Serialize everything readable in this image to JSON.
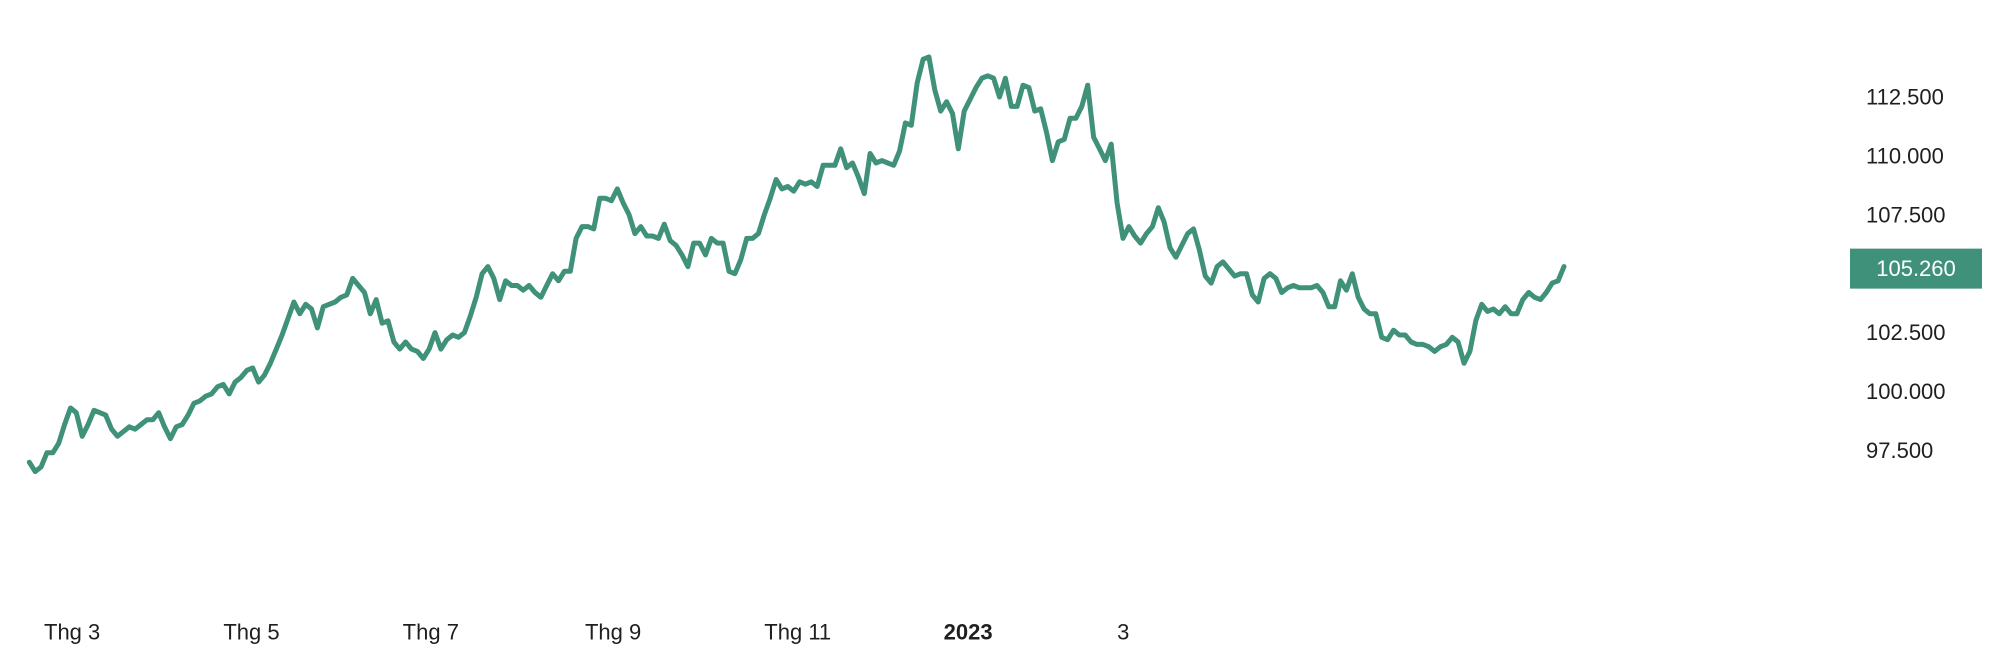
{
  "chart_data": {
    "type": "line",
    "title": "",
    "xlabel": "",
    "ylabel": "",
    "ylim": [
      95.5,
      114.7
    ],
    "grid": false,
    "color": "#3f917a",
    "label_bg": "#3f917a",
    "y_ticks": [
      {
        "value": 112.5,
        "label": "112.500"
      },
      {
        "value": 110.0,
        "label": "110.000"
      },
      {
        "value": 107.5,
        "label": "107.500"
      },
      {
        "value": 102.5,
        "label": "102.500"
      },
      {
        "value": 100.0,
        "label": "100.000"
      },
      {
        "value": 97.5,
        "label": "97.500"
      }
    ],
    "x_ticks": [
      {
        "x": 0,
        "label": "Thg 3",
        "bold": false
      },
      {
        "x": 61,
        "label": "Thg 5",
        "bold": false
      },
      {
        "x": 122,
        "label": "Thg 7",
        "bold": false
      },
      {
        "x": 184,
        "label": "Thg 9",
        "bold": false
      },
      {
        "x": 245,
        "label": "Thg 11",
        "bold": false
      },
      {
        "x": 306,
        "label": "2023",
        "bold": true
      },
      {
        "x": 365,
        "label": "3",
        "bold": false
      }
    ],
    "last_value_label": "105.260",
    "series": [
      {
        "points": [
          [
            -5,
            97.0
          ],
          [
            -3,
            96.6
          ],
          [
            -1,
            96.8
          ],
          [
            1,
            97.4
          ],
          [
            3,
            97.4
          ],
          [
            5,
            97.8
          ],
          [
            7,
            98.6
          ],
          [
            9,
            99.3
          ],
          [
            11,
            99.1
          ],
          [
            13,
            98.1
          ],
          [
            15,
            98.6
          ],
          [
            17,
            99.2
          ],
          [
            19,
            99.1
          ],
          [
            21,
            99.0
          ],
          [
            23,
            98.4
          ],
          [
            25,
            98.1
          ],
          [
            27,
            98.3
          ],
          [
            29,
            98.5
          ],
          [
            31,
            98.4
          ],
          [
            33,
            98.6
          ],
          [
            35,
            98.8
          ],
          [
            37,
            98.8
          ],
          [
            39,
            99.1
          ],
          [
            41,
            98.5
          ],
          [
            43,
            98.0
          ],
          [
            45,
            98.5
          ],
          [
            47,
            98.6
          ],
          [
            49,
            99.0
          ],
          [
            51,
            99.5
          ],
          [
            53,
            99.6
          ],
          [
            55,
            99.8
          ],
          [
            57,
            99.9
          ],
          [
            59,
            100.2
          ],
          [
            61,
            100.3
          ],
          [
            63,
            99.9
          ],
          [
            65,
            100.4
          ],
          [
            67,
            100.6
          ],
          [
            69,
            100.9
          ],
          [
            71,
            101.0
          ],
          [
            73,
            100.4
          ],
          [
            75,
            100.7
          ],
          [
            77,
            101.2
          ],
          [
            79,
            101.8
          ],
          [
            81,
            102.4
          ],
          [
            83,
            103.1
          ],
          [
            85,
            103.8
          ],
          [
            87,
            103.3
          ],
          [
            89,
            103.7
          ],
          [
            91,
            103.5
          ],
          [
            93,
            102.7
          ],
          [
            95,
            103.6
          ],
          [
            97,
            103.7
          ],
          [
            99,
            103.8
          ],
          [
            101,
            104.0
          ],
          [
            103,
            104.1
          ],
          [
            105,
            104.8
          ],
          [
            107,
            104.5
          ],
          [
            109,
            104.2
          ],
          [
            111,
            103.3
          ],
          [
            113,
            103.9
          ],
          [
            115,
            102.9
          ],
          [
            117,
            103.0
          ],
          [
            119,
            102.1
          ],
          [
            121,
            101.8
          ],
          [
            123,
            102.1
          ],
          [
            125,
            101.8
          ],
          [
            127,
            101.7
          ],
          [
            129,
            101.4
          ],
          [
            131,
            101.8
          ],
          [
            133,
            102.5
          ],
          [
            135,
            101.8
          ],
          [
            137,
            102.2
          ],
          [
            139,
            102.4
          ],
          [
            141,
            102.3
          ],
          [
            143,
            102.5
          ],
          [
            145,
            103.2
          ],
          [
            147,
            104.0
          ],
          [
            149,
            105.0
          ],
          [
            151,
            105.3
          ],
          [
            153,
            104.8
          ],
          [
            155,
            103.9
          ],
          [
            157,
            104.7
          ],
          [
            159,
            104.5
          ],
          [
            161,
            104.5
          ],
          [
            163,
            104.3
          ],
          [
            165,
            104.5
          ],
          [
            167,
            104.2
          ],
          [
            169,
            104.0
          ],
          [
            171,
            104.5
          ],
          [
            173,
            105.0
          ],
          [
            175,
            104.7
          ],
          [
            177,
            105.1
          ],
          [
            179,
            105.1
          ],
          [
            181,
            106.5
          ],
          [
            183,
            107.0
          ],
          [
            185,
            107.0
          ],
          [
            187,
            106.9
          ],
          [
            189,
            108.2
          ],
          [
            191,
            108.2
          ],
          [
            193,
            108.1
          ],
          [
            195,
            108.6
          ],
          [
            197,
            108.0
          ],
          [
            199,
            107.5
          ],
          [
            201,
            106.7
          ],
          [
            203,
            107.0
          ],
          [
            205,
            106.6
          ],
          [
            207,
            106.6
          ],
          [
            209,
            106.5
          ],
          [
            211,
            107.1
          ],
          [
            213,
            106.4
          ],
          [
            215,
            106.2
          ],
          [
            217,
            105.8
          ],
          [
            219,
            105.3
          ],
          [
            221,
            106.3
          ],
          [
            223,
            106.3
          ],
          [
            225,
            105.8
          ],
          [
            227,
            106.5
          ],
          [
            229,
            106.3
          ],
          [
            231,
            106.3
          ],
          [
            233,
            105.1
          ],
          [
            235,
            105.0
          ],
          [
            237,
            105.6
          ],
          [
            239,
            106.5
          ],
          [
            241,
            106.5
          ],
          [
            243,
            106.7
          ],
          [
            245,
            107.5
          ],
          [
            247,
            108.2
          ],
          [
            249,
            109.0
          ],
          [
            251,
            108.6
          ],
          [
            253,
            108.7
          ],
          [
            255,
            108.5
          ],
          [
            257,
            108.9
          ],
          [
            259,
            108.8
          ],
          [
            261,
            108.9
          ],
          [
            263,
            108.7
          ],
          [
            265,
            109.6
          ],
          [
            267,
            109.6
          ],
          [
            269,
            109.6
          ],
          [
            271,
            110.3
          ],
          [
            273,
            109.5
          ],
          [
            275,
            109.7
          ],
          [
            277,
            109.1
          ],
          [
            279,
            108.4
          ],
          [
            281,
            110.1
          ],
          [
            283,
            109.7
          ],
          [
            285,
            109.8
          ],
          [
            287,
            109.7
          ],
          [
            289,
            109.6
          ],
          [
            291,
            110.2
          ],
          [
            293,
            111.4
          ],
          [
            295,
            111.3
          ],
          [
            297,
            113.1
          ],
          [
            299,
            114.1
          ],
          [
            301,
            114.2
          ],
          [
            303,
            112.8
          ],
          [
            305,
            111.9
          ],
          [
            307,
            112.3
          ],
          [
            309,
            111.8
          ],
          [
            311,
            110.3
          ],
          [
            313,
            111.9
          ],
          [
            315,
            112.4
          ],
          [
            317,
            112.9
          ],
          [
            319,
            113.3
          ],
          [
            321,
            113.4
          ],
          [
            323,
            113.3
          ],
          [
            325,
            112.5
          ],
          [
            327,
            113.3
          ],
          [
            329,
            112.1
          ],
          [
            331,
            112.1
          ],
          [
            333,
            113.0
          ],
          [
            335,
            112.9
          ],
          [
            337,
            111.9
          ],
          [
            339,
            112.0
          ],
          [
            341,
            111.0
          ],
          [
            343,
            109.8
          ],
          [
            345,
            110.6
          ],
          [
            347,
            110.7
          ],
          [
            349,
            111.6
          ],
          [
            351,
            111.6
          ],
          [
            353,
            112.1
          ],
          [
            355,
            113.0
          ],
          [
            357,
            110.8
          ],
          [
            359,
            110.3
          ],
          [
            361,
            109.8
          ],
          [
            363,
            110.5
          ],
          [
            365,
            108.0
          ],
          [
            367,
            106.5
          ],
          [
            369,
            107.0
          ],
          [
            371,
            106.6
          ],
          [
            373,
            106.3
          ],
          [
            375,
            106.7
          ],
          [
            377,
            107.0
          ],
          [
            379,
            107.8
          ],
          [
            381,
            107.2
          ],
          [
            383,
            106.1
          ],
          [
            385,
            105.7
          ],
          [
            387,
            106.2
          ],
          [
            389,
            106.7
          ],
          [
            391,
            106.9
          ],
          [
            393,
            106.0
          ],
          [
            395,
            104.9
          ],
          [
            397,
            104.6
          ],
          [
            399,
            105.3
          ],
          [
            401,
            105.5
          ],
          [
            403,
            105.2
          ],
          [
            405,
            104.9
          ],
          [
            407,
            105.0
          ],
          [
            409,
            105.0
          ],
          [
            411,
            104.1
          ],
          [
            413,
            103.8
          ],
          [
            415,
            104.8
          ],
          [
            417,
            105.0
          ],
          [
            419,
            104.8
          ],
          [
            421,
            104.2
          ],
          [
            423,
            104.4
          ],
          [
            425,
            104.5
          ],
          [
            427,
            104.4
          ],
          [
            429,
            104.4
          ],
          [
            431,
            104.4
          ],
          [
            433,
            104.5
          ],
          [
            435,
            104.2
          ],
          [
            437,
            103.6
          ],
          [
            439,
            103.6
          ],
          [
            441,
            104.7
          ],
          [
            443,
            104.3
          ],
          [
            445,
            105.0
          ],
          [
            447,
            104.0
          ],
          [
            449,
            103.5
          ],
          [
            451,
            103.3
          ],
          [
            453,
            103.3
          ],
          [
            455,
            102.3
          ],
          [
            457,
            102.2
          ],
          [
            459,
            102.6
          ],
          [
            461,
            102.4
          ],
          [
            463,
            102.4
          ],
          [
            465,
            102.1
          ],
          [
            467,
            102.0
          ],
          [
            469,
            102.0
          ],
          [
            471,
            101.9
          ],
          [
            473,
            101.7
          ],
          [
            475,
            101.9
          ],
          [
            477,
            102.0
          ],
          [
            479,
            102.3
          ],
          [
            481,
            102.1
          ],
          [
            483,
            101.2
          ],
          [
            485,
            101.7
          ],
          [
            487,
            103.0
          ],
          [
            489,
            103.7
          ],
          [
            491,
            103.4
          ],
          [
            493,
            103.5
          ],
          [
            495,
            103.3
          ],
          [
            497,
            103.6
          ],
          [
            499,
            103.3
          ],
          [
            501,
            103.3
          ],
          [
            503,
            103.9
          ],
          [
            505,
            104.2
          ],
          [
            507,
            104.0
          ],
          [
            509,
            103.9
          ],
          [
            511,
            104.2
          ],
          [
            513,
            104.6
          ],
          [
            515,
            104.7
          ],
          [
            517,
            105.3
          ]
        ]
      }
    ]
  }
}
